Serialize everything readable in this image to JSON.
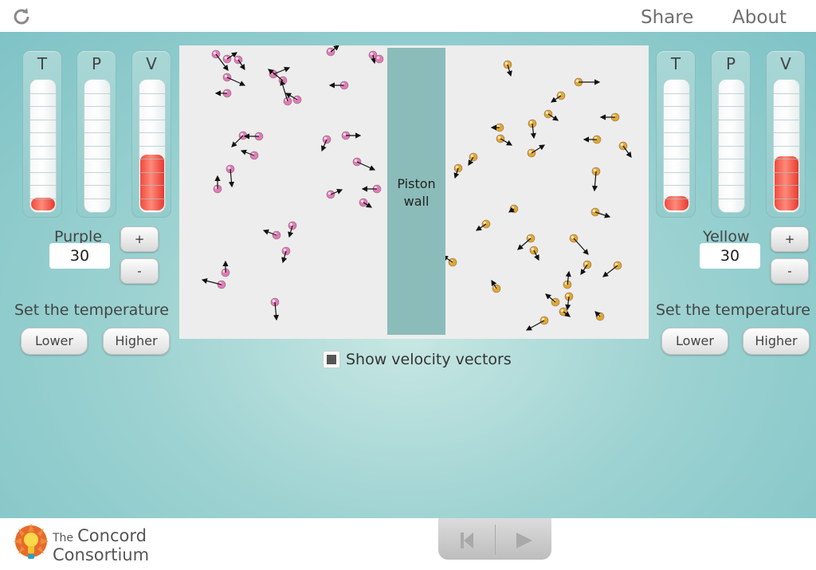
{
  "header": {
    "share_label": "Share",
    "about_label": "About"
  },
  "left": {
    "gauges": [
      {
        "label": "T",
        "fill": 0.1
      },
      {
        "label": "P",
        "fill": 0.0
      },
      {
        "label": "V",
        "fill": 0.43
      }
    ],
    "gas_name": "Purple",
    "value": "30",
    "plus_label": "+",
    "minus_label": "-",
    "set_temp_label": "Set the temperature",
    "lower_label": "Lower",
    "higher_label": "Higher"
  },
  "right": {
    "gauges": [
      {
        "label": "T",
        "fill": 0.11
      },
      {
        "label": "P",
        "fill": 0.0
      },
      {
        "label": "V",
        "fill": 0.42
      }
    ],
    "gas_name": "Yellow",
    "value": "30",
    "plus_label": "+",
    "minus_label": "-",
    "set_temp_label": "Set the temperature",
    "lower_label": "Lower",
    "higher_label": "Higher"
  },
  "simulation": {
    "piston_line1": "Piston",
    "piston_line2": "wall",
    "purple_color": "#e07ab8",
    "yellow_color": "#e0a82c",
    "show_vectors_checked": true,
    "show_vectors_label": "Show velocity vectors"
  },
  "footer": {
    "brand_the": "The",
    "brand_concord": "Concord",
    "brand_consortium": "Consortium",
    "player": {
      "rewind_icon": "skip-to-start-icon",
      "play_icon": "play-icon"
    }
  }
}
